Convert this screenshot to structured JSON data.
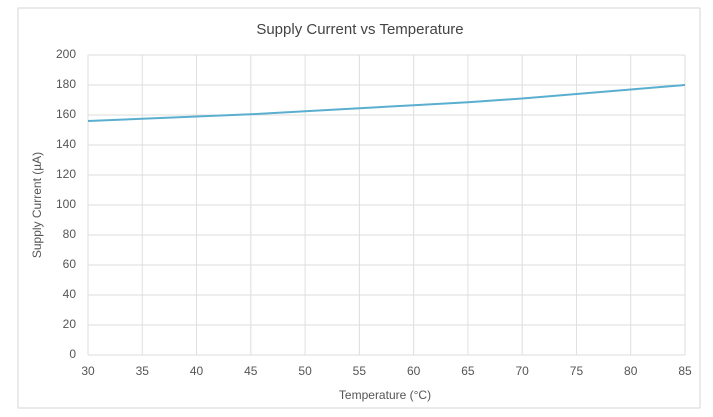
{
  "chart_data": {
    "type": "line",
    "title": "Supply Current vs Temperature",
    "x_label": "Temperature (°C)",
    "y_label": "Supply Current (µA)",
    "x": [
      30,
      35,
      40,
      45,
      50,
      55,
      60,
      65,
      70,
      75,
      80,
      85
    ],
    "values": [
      156,
      157.5,
      159,
      160.5,
      162.5,
      164.5,
      166.5,
      168.5,
      171,
      174,
      177,
      180
    ],
    "color": "#5aafd0",
    "xlim": [
      30,
      85
    ],
    "xticks": [
      30,
      35,
      40,
      45,
      50,
      55,
      60,
      65,
      70,
      75,
      80,
      85
    ],
    "ylim": [
      0,
      200
    ],
    "yticks": [
      0,
      20,
      40,
      60,
      80,
      100,
      120,
      140,
      160,
      180,
      200
    ],
    "grid": true
  }
}
